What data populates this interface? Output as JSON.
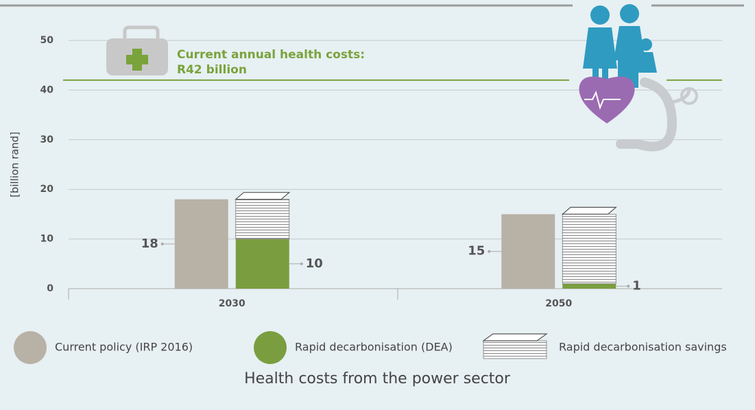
{
  "chart_data": {
    "type": "bar",
    "title": "Health costs from the power sector",
    "y_label": "[billion rand]",
    "categories": [
      "2030",
      "2050"
    ],
    "series": [
      {
        "name": "Current policy (IRP 2016)",
        "color": "#b8b1a6",
        "values": [
          18,
          15
        ]
      },
      {
        "name": "Rapid decarbonisation (DEA)",
        "color": "#7a9e3f",
        "values": [
          10,
          1
        ]
      },
      {
        "name": "Rapid decarbonisation savings",
        "color": "#ffffff",
        "values": [
          8,
          14
        ],
        "stacked_on": 1
      }
    ],
    "ylim": [
      0,
      50
    ],
    "yticks": [
      0,
      10,
      20,
      30,
      40,
      50
    ],
    "grid": true,
    "reference": {
      "value": 42,
      "color": "#7aa33b",
      "lines": [
        "Current annual health costs:",
        "R42 billion"
      ]
    }
  }
}
